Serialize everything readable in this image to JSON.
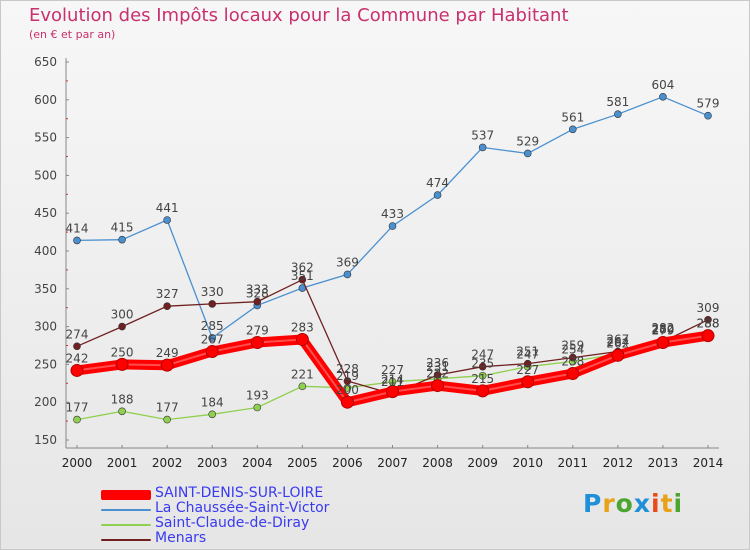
{
  "title": "Evolution des Impôts locaux pour la Commune par Habitant",
  "subtitle": "(en € et par an)",
  "logo": {
    "text": "Proxiti",
    "letters": [
      "P",
      "r",
      "o",
      "x",
      "i",
      "t",
      "i"
    ],
    "colors": [
      "#1f8fd8",
      "#e8a21a",
      "#4aa62e",
      "#1f8fd8",
      "#e84a1a",
      "#e8a21a",
      "#4aa62e"
    ]
  },
  "chart_data": {
    "type": "line",
    "title": "Evolution des Impôts locaux pour la Commune par Habitant",
    "subtitle": "(en € et par an)",
    "x": [
      "2000",
      "2001",
      "2002",
      "2003",
      "2004",
      "2005",
      "2006",
      "2007",
      "2008",
      "2009",
      "2010",
      "2011",
      "2012",
      "2013",
      "2014"
    ],
    "ylim": [
      150,
      650
    ],
    "yticks": [
      "150",
      "200",
      "250",
      "300",
      "350",
      "400",
      "450",
      "500",
      "550",
      "600",
      "650"
    ],
    "grid": false,
    "legend_position": "bottom-left",
    "series": [
      {
        "name": "SAINT-DENIS-SUR-LOIRE",
        "color": "#ff0000",
        "values": [
          242,
          250,
          249,
          267,
          279,
          283,
          200,
          214,
          222,
          215,
          227,
          238,
          262,
          279,
          288
        ]
      },
      {
        "name": "La Chaussée-Saint-Victor",
        "color": "#4a90d0",
        "values": [
          414,
          415,
          441,
          285,
          328,
          351,
          369,
          433,
          474,
          537,
          529,
          561,
          581,
          604,
          579
        ]
      },
      {
        "name": "Saint-Claude-de-Diray",
        "color": "#90d050",
        "values": [
          177,
          188,
          177,
          184,
          193,
          221,
          219,
          227,
          231,
          235,
          247,
          254,
          264,
          282,
          288
        ]
      },
      {
        "name": "Menars",
        "color": "#702020",
        "values": [
          274,
          300,
          327,
          330,
          333,
          362,
          228,
          211,
          236,
          247,
          251,
          259,
          267,
          280,
          309
        ]
      }
    ]
  }
}
